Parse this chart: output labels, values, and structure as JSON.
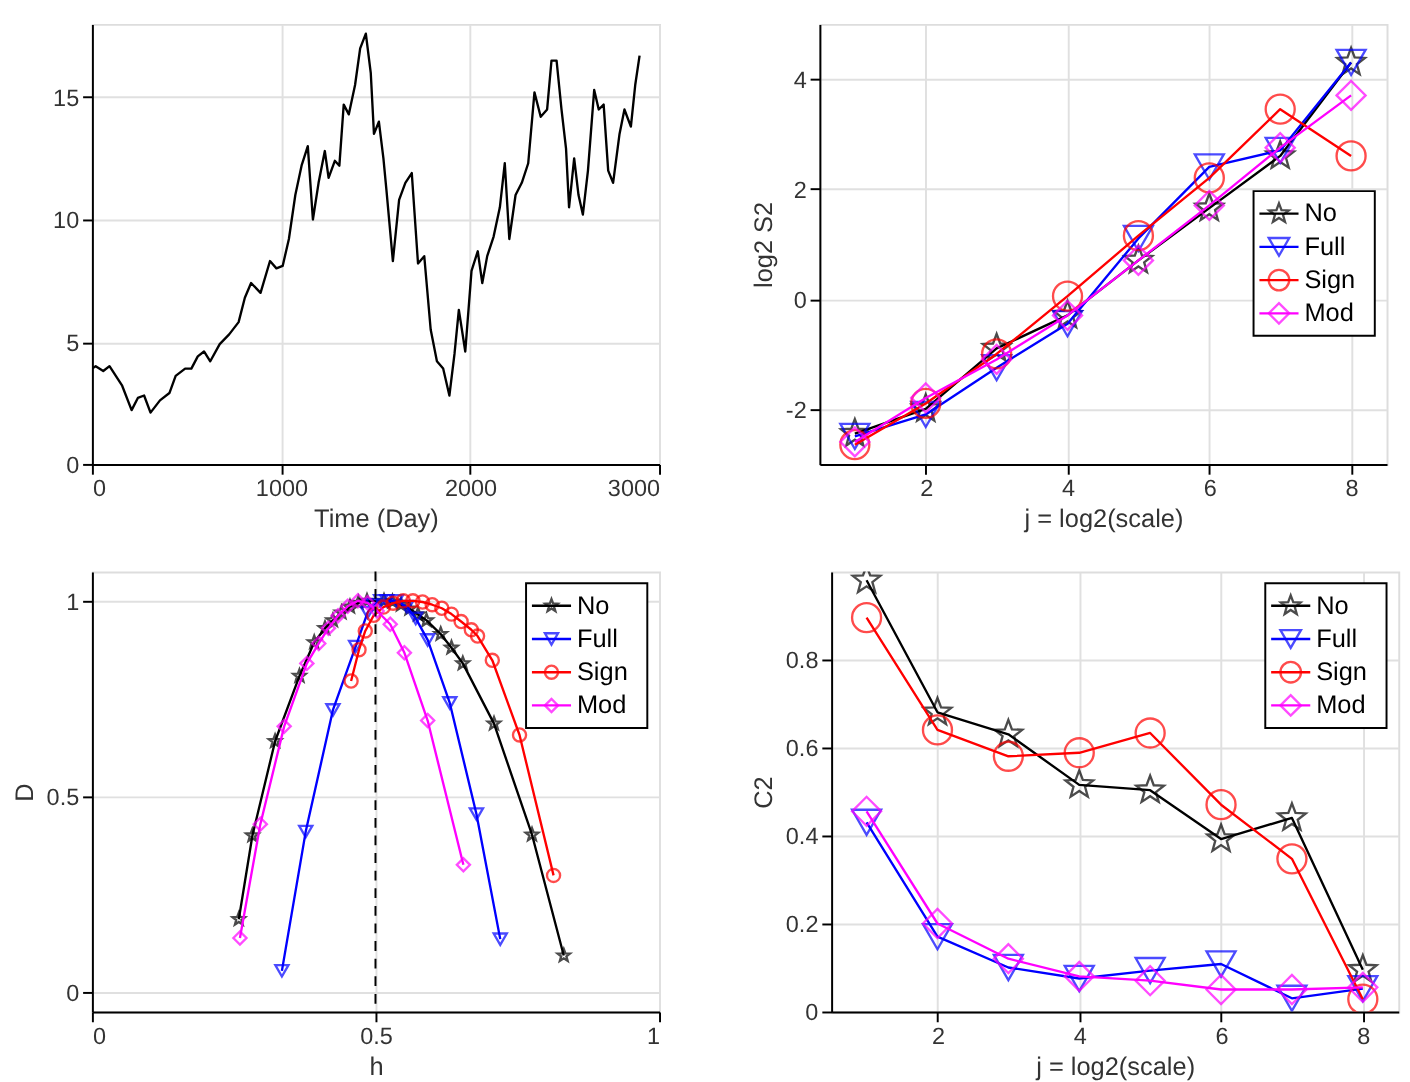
{
  "chart_data": [
    {
      "type": "line",
      "xlabel": "Time (Day)",
      "xlim": [
        0,
        3000
      ],
      "xticks": [
        0,
        1000,
        2000,
        3000
      ],
      "ylim": [
        0,
        18
      ],
      "yticks": [
        0,
        5,
        10,
        15
      ],
      "grid": true,
      "marker": "none",
      "series": [
        {
          "color": "#000000",
          "x": [
            0,
            20,
            60,
            93,
            160,
            210,
            243,
            276,
            310,
            360,
            410,
            443,
            493,
            526,
            560,
            593,
            626,
            676,
            726,
            776,
            809,
            842,
            892,
            942,
            976,
            1009,
            1042,
            1076,
            1109,
            1142,
            1169,
            1199,
            1232,
            1252,
            1285,
            1309,
            1332,
            1359,
            1392,
            1419,
            1449,
            1475,
            1492,
            1518,
            1542,
            1558,
            1592,
            1625,
            1658,
            1692,
            1725,
            1758,
            1792,
            1825,
            1858,
            1891,
            1918,
            1941,
            1975,
            2008,
            2041,
            2065,
            2091,
            2125,
            2158,
            2184,
            2208,
            2241,
            2274,
            2308,
            2341,
            2374,
            2408,
            2431,
            2458,
            2484,
            2508,
            2524,
            2551,
            2574,
            2597,
            2624,
            2657,
            2681,
            2707,
            2731,
            2757,
            2791,
            2817,
            2851,
            2874,
            2897
          ],
          "values": [
            3.9,
            4.0,
            3.8,
            4.0,
            3.2,
            2.2,
            2.7,
            2.8,
            2.1,
            2.6,
            2.9,
            3.6,
            3.9,
            3.9,
            4.4,
            4.6,
            4.2,
            4.9,
            5.3,
            5.8,
            6.8,
            7.4,
            7.0,
            8.3,
            8.0,
            8.1,
            9.2,
            11.0,
            12.2,
            13.0,
            10.0,
            11.5,
            12.8,
            11.7,
            12.4,
            12.2,
            14.7,
            14.3,
            15.5,
            17.0,
            17.6,
            16.0,
            13.5,
            14.0,
            12.5,
            11.2,
            8.3,
            10.8,
            11.5,
            11.9,
            8.2,
            8.5,
            5.5,
            4.2,
            3.9,
            2.8,
            4.5,
            6.3,
            4.6,
            7.9,
            8.7,
            7.4,
            8.5,
            9.3,
            10.5,
            12.3,
            9.2,
            11.0,
            11.5,
            12.3,
            15.2,
            14.2,
            14.5,
            16.5,
            16.5,
            14.5,
            12.9,
            10.5,
            12.5,
            11.0,
            10.2,
            12.0,
            15.3,
            14.5,
            14.7,
            12.0,
            11.5,
            13.5,
            14.5,
            13.8,
            15.5,
            16.7
          ]
        }
      ]
    },
    {
      "type": "line",
      "xlabel": "j = log2(scale)",
      "ylabel": "log2 S2",
      "x": [
        1,
        2,
        3,
        4,
        5,
        6,
        7,
        8
      ],
      "xlim": [
        0.5,
        8.5
      ],
      "xticks": [
        2,
        4,
        6,
        8
      ],
      "ylim": [
        -3,
        5
      ],
      "yticks": [
        -2,
        0,
        2,
        4
      ],
      "grid": true,
      "legend": "right",
      "series": [
        {
          "name": "No",
          "color": "#000000",
          "marker": "star",
          "values": [
            -2.45,
            -2.0,
            -0.9,
            -0.3,
            0.7,
            1.65,
            2.6,
            4.3
          ]
        },
        {
          "name": "Full",
          "color": "#0000ff",
          "marker": "triangle",
          "values": [
            -2.5,
            -2.1,
            -1.25,
            -0.45,
            1.1,
            2.4,
            2.7,
            4.3
          ]
        },
        {
          "name": "Sign",
          "color": "#ff0000",
          "marker": "circle",
          "values": [
            -2.65,
            -1.9,
            -1.0,
            0.05,
            1.15,
            2.2,
            3.45,
            2.6
          ]
        },
        {
          "name": "Mod",
          "color": "#ff00ff",
          "marker": "diamond",
          "values": [
            -2.6,
            -1.8,
            -1.1,
            -0.3,
            0.7,
            1.7,
            2.75,
            3.7
          ]
        }
      ]
    },
    {
      "type": "line",
      "xlabel": "h",
      "ylabel": "D",
      "xlim": [
        0,
        1
      ],
      "xticks": [
        0,
        0.5,
        1
      ],
      "ylim": [
        -0.05,
        1.075
      ],
      "yticks": [
        0,
        0.5,
        1
      ],
      "grid": true,
      "legend": "top right",
      "ref_lines": [
        {
          "axis": "x",
          "value": 0.5,
          "color": "#000000",
          "line_style": "dashed"
        }
      ],
      "series": [
        {
          "name": "No",
          "color": "#000000",
          "marker": "star",
          "x": [
            0.259,
            0.283,
            0.323,
            0.366,
            0.392,
            0.411,
            0.425,
            0.44,
            0.455,
            0.47,
            0.485,
            0.5,
            0.515,
            0.53,
            0.545,
            0.56,
            0.575,
            0.59,
            0.615,
            0.634,
            0.654,
            0.709,
            0.776,
            0.832
          ],
          "values": [
            0.186,
            0.4,
            0.641,
            0.808,
            0.894,
            0.93,
            0.95,
            0.97,
            0.985,
            0.995,
            1.0,
            null,
            1.0,
            0.998,
            0.99,
            0.98,
            0.965,
            0.95,
            0.915,
            0.88,
            0.84,
            0.686,
            0.402,
            0.093
          ]
        },
        {
          "name": "Full",
          "color": "#0000ff",
          "marker": "triangle",
          "x": [
            0.335,
            0.377,
            0.425,
            0.465,
            0.486,
            0.495,
            0.509,
            0.52,
            0.537,
            0.555,
            0.571,
            0.592,
            0.631,
            0.678,
            0.72
          ],
          "values": [
            0.054,
            0.41,
            0.721,
            0.883,
            0.97,
            0.99,
            1.0,
            1.0,
            1.0,
            0.985,
            0.955,
            0.9,
            0.739,
            0.455,
            0.135
          ]
        },
        {
          "name": "Sign",
          "color": "#ff0000",
          "marker": "circle",
          "x": [
            0.457,
            0.471,
            0.482,
            0.497,
            0.514,
            0.531,
            0.549,
            0.566,
            0.583,
            0.6,
            0.617,
            0.634,
            0.651,
            0.669,
            0.68,
            0.706,
            0.754,
            0.814
          ],
          "values": [
            0.795,
            0.875,
            0.923,
            0.963,
            0.984,
            0.994,
            1.0,
            1.0,
            0.997,
            0.99,
            0.981,
            0.966,
            0.947,
            0.926,
            0.91,
            0.848,
            0.657,
            0.298
          ]
        },
        {
          "name": "Mod",
          "color": "#ff00ff",
          "marker": "diamond",
          "x": [
            0.261,
            0.297,
            0.339,
            0.379,
            0.4,
            0.417,
            0.434,
            0.451,
            0.469,
            0.486,
            0.503,
            0.526,
            0.551,
            0.592,
            0.655
          ],
          "values": [
            0.138,
            0.429,
            0.679,
            0.84,
            0.891,
            0.93,
            0.962,
            0.986,
            1.0,
            0.995,
            0.974,
            0.94,
            0.867,
            0.694,
            0.325
          ]
        }
      ]
    },
    {
      "type": "line",
      "xlabel": "j = log2(scale)",
      "ylabel": "C2",
      "x": [
        1,
        2,
        3,
        4,
        5,
        6,
        7,
        8
      ],
      "xlim": [
        0.5,
        8.5
      ],
      "xticks": [
        2,
        4,
        6,
        8
      ],
      "ylim": [
        0,
        1
      ],
      "yticks": [
        0,
        0.2,
        0.4,
        0.6,
        0.8
      ],
      "grid": true,
      "legend": "top right",
      "series": [
        {
          "name": "No",
          "color": "#000000",
          "marker": "star",
          "values": [
            0.98,
            0.68,
            0.63,
            0.515,
            0.503,
            0.392,
            0.44,
            0.095
          ]
        },
        {
          "name": "Full",
          "color": "#0000ff",
          "marker": "triangle",
          "values": [
            0.43,
            0.17,
            0.1,
            0.075,
            0.093,
            0.108,
            0.03,
            0.052
          ]
        },
        {
          "name": "Sign",
          "color": "#ff0000",
          "marker": "circle",
          "values": [
            0.895,
            0.64,
            0.58,
            0.588,
            0.633,
            0.47,
            0.347,
            0.028
          ]
        },
        {
          "name": "Mod",
          "color": "#ff00ff",
          "marker": "diamond",
          "values": [
            0.455,
            0.2,
            0.12,
            0.08,
            0.07,
            0.05,
            0.05,
            0.055
          ]
        }
      ]
    }
  ]
}
